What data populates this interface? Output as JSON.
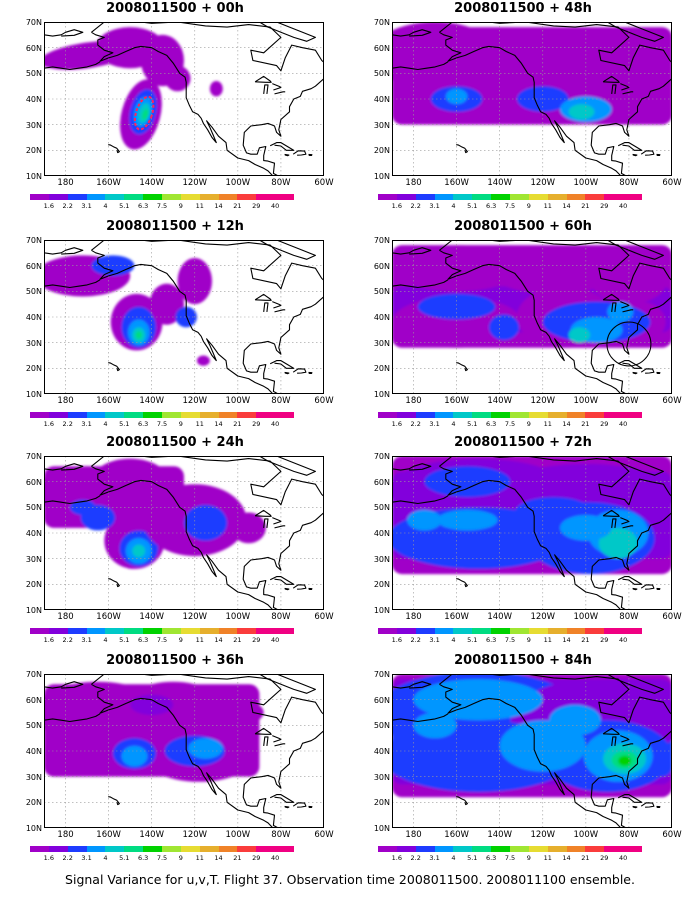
{
  "panels": [
    {
      "title": "2008011500 + 00h",
      "forecast_hour": 0
    },
    {
      "title": "2008011500 + 48h",
      "forecast_hour": 48
    },
    {
      "title": "2008011500 + 12h",
      "forecast_hour": 12
    },
    {
      "title": "2008011500 + 60h",
      "forecast_hour": 60
    },
    {
      "title": "2008011500 + 24h",
      "forecast_hour": 24
    },
    {
      "title": "2008011500 + 72h",
      "forecast_hour": 72
    },
    {
      "title": "2008011500 + 36h",
      "forecast_hour": 36
    },
    {
      "title": "2008011500 + 84h",
      "forecast_hour": 84
    }
  ],
  "lat_labels": [
    "70N",
    "60N",
    "50N",
    "40N",
    "30N",
    "20N",
    "10N"
  ],
  "lon_labels": [
    "180",
    "160W",
    "140W",
    "120W",
    "100W",
    "80W",
    "60W"
  ],
  "colorbar": {
    "tick_labels": [
      "1.6",
      "2.2",
      "3.1",
      "4",
      "5.1",
      "6.3",
      "7.5",
      "9",
      "11",
      "14",
      "21",
      "29",
      "40"
    ],
    "colors": [
      "#a000c8",
      "#8200dc",
      "#1e3cff",
      "#0096ff",
      "#00c8c8",
      "#00dc82",
      "#00d200",
      "#a0e632",
      "#e6dc32",
      "#e6af2d",
      "#f08228",
      "#fa3c3c",
      "#f00082"
    ]
  },
  "caption": "Signal Variance for u,v,T. Flight 37. Observation time 2008011500. 2008011100 ensemble.",
  "annotations": {
    "panel_00h": "dashed red ellipse around target area",
    "panel_60h": "black circle over southeastern United States"
  }
}
